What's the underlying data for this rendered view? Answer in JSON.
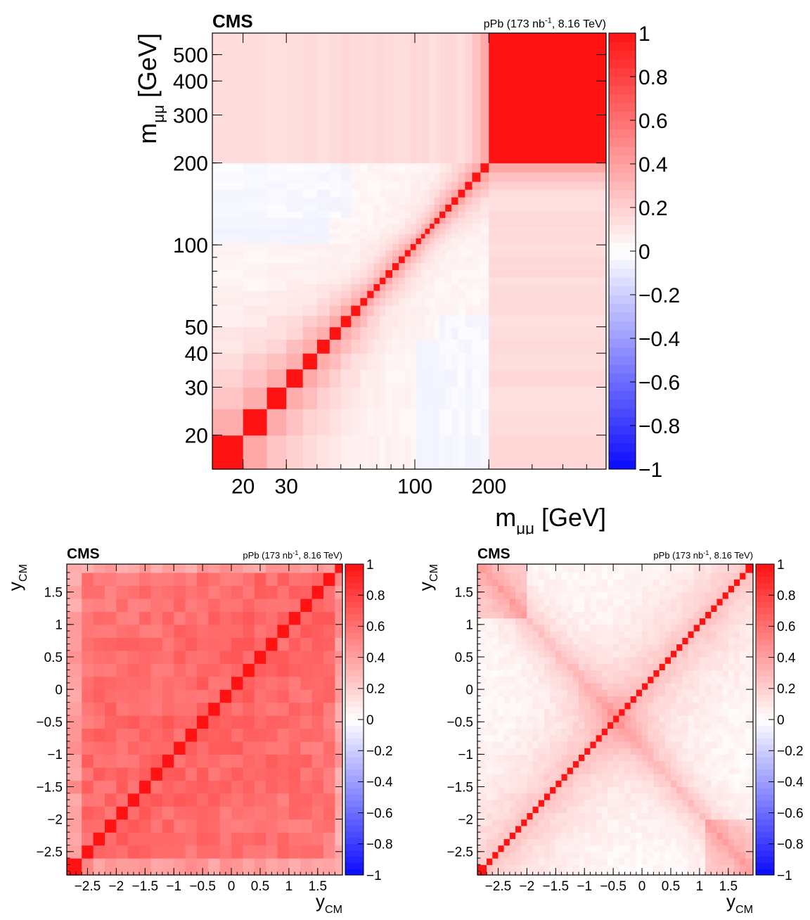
{
  "chart_data": [
    {
      "type": "heatmap",
      "label": "CMS",
      "lumi_label": "pPb (173 nb",
      "lumi_sup": "-1",
      "lumi_suffix": ", 8.16 TeV)",
      "xlabel": "m",
      "ylabel": "m",
      "label_subscript": "μμ",
      "label_unit": "[GeV]",
      "axis_scale": "log",
      "bin_edges": [
        15,
        20,
        25,
        30,
        35,
        40,
        45,
        50,
        55,
        60,
        64,
        68,
        72,
        76,
        81,
        86,
        91,
        96,
        101,
        106,
        110,
        115,
        120,
        126,
        133,
        141,
        150,
        160,
        171,
        185,
        200,
        1000
      ],
      "axis_range": [
        15,
        600
      ],
      "x_tick_labels": [
        "20",
        "30",
        "100",
        "200"
      ],
      "x_tick_values": [
        20,
        30,
        100,
        200
      ],
      "y_tick_labels": [
        "20",
        "30",
        "40",
        "50",
        "100",
        "200",
        "300",
        "400",
        "500"
      ],
      "y_tick_values": [
        20,
        30,
        40,
        50,
        100,
        200,
        300,
        400,
        500
      ],
      "z_range": [
        -1,
        1
      ],
      "colorbar_tick_labels": [
        "1",
        "0.8",
        "0.6",
        "0.4",
        "0.2",
        "0",
        "−0.2",
        "−0.4",
        "−0.6",
        "−0.8",
        "−1"
      ],
      "colorbar_tick_values": [
        1,
        0.8,
        0.6,
        0.4,
        0.2,
        0,
        -0.2,
        -0.4,
        -0.6,
        -0.8,
        -1
      ],
      "diagonal_value": 1.0,
      "off_diagonal_decay": 0.35,
      "off_diagonal_floor": 0.04,
      "low_mass_negative": -0.06
    },
    {
      "type": "heatmap",
      "label": "CMS",
      "lumi_label": "pPb (173 nb",
      "lumi_sup": "-1",
      "lumi_suffix": ", 8.16 TeV)",
      "xlabel": "y",
      "ylabel": "y",
      "label_subscript": "CM",
      "bin_edges": [
        -2.86,
        -2.6,
        -2.4,
        -2.2,
        -2.0,
        -1.8,
        -1.6,
        -1.4,
        -1.2,
        -1.0,
        -0.8,
        -0.6,
        -0.4,
        -0.2,
        0.0,
        0.2,
        0.4,
        0.6,
        0.8,
        1.0,
        1.2,
        1.4,
        1.6,
        1.8,
        1.93
      ],
      "axis_range": [
        -2.86,
        1.93
      ],
      "tick_labels": [
        "−2.5",
        "−2",
        "−1.5",
        "−1",
        "−0.5",
        "0",
        "0.5",
        "1",
        "1.5"
      ],
      "tick_values": [
        -2.5,
        -2,
        -1.5,
        -1,
        -0.5,
        0,
        0.5,
        1,
        1.5
      ],
      "z_range": [
        -1,
        1
      ],
      "colorbar_tick_labels": [
        "1",
        "0.8",
        "0.6",
        "0.4",
        "0.2",
        "0",
        "−0.2",
        "−0.4",
        "−0.6",
        "−0.8",
        "−1"
      ],
      "colorbar_tick_values": [
        1,
        0.8,
        0.6,
        0.4,
        0.2,
        0,
        -0.2,
        -0.4,
        -0.6,
        -0.8,
        -1
      ],
      "diagonal_value": 1.0,
      "typical_off_diagonal": 0.65,
      "edge_off_diagonal": 0.45
    },
    {
      "type": "heatmap",
      "label": "CMS",
      "lumi_label": "pPb (173 nb",
      "lumi_sup": "-1",
      "lumi_suffix": ", 8.16 TeV)",
      "xlabel": "y",
      "ylabel": "y",
      "label_subscript": "CM",
      "bin_edges": [
        -2.86,
        -2.7,
        -2.6,
        -2.5,
        -2.4,
        -2.3,
        -2.2,
        -2.1,
        -2.0,
        -1.9,
        -1.8,
        -1.7,
        -1.6,
        -1.5,
        -1.4,
        -1.3,
        -1.2,
        -1.1,
        -1.0,
        -0.9,
        -0.8,
        -0.7,
        -0.6,
        -0.5,
        -0.4,
        -0.3,
        -0.2,
        -0.1,
        0.0,
        0.1,
        0.2,
        0.3,
        0.4,
        0.5,
        0.6,
        0.7,
        0.8,
        0.9,
        1.0,
        1.1,
        1.2,
        1.3,
        1.4,
        1.5,
        1.6,
        1.7,
        1.8,
        1.93
      ],
      "axis_range": [
        -2.86,
        1.93
      ],
      "tick_labels": [
        "−2.5",
        "−2",
        "−1.5",
        "−1",
        "−0.5",
        "0",
        "0.5",
        "1",
        "1.5"
      ],
      "tick_values": [
        -2.5,
        -2,
        -1.5,
        -1,
        -0.5,
        0,
        0.5,
        1,
        1.5
      ],
      "z_range": [
        -1,
        1
      ],
      "colorbar_tick_labels": [
        "1",
        "0.8",
        "0.6",
        "0.4",
        "0.2",
        "0",
        "−0.2",
        "−0.4",
        "−0.6",
        "−0.8",
        "−1"
      ],
      "colorbar_tick_values": [
        1,
        0.8,
        0.6,
        0.4,
        0.2,
        0,
        -0.2,
        -0.4,
        -0.6,
        -0.8,
        -1
      ],
      "diagonal_value": 1.0,
      "mirror_correlation_peak": 0.3
    }
  ]
}
